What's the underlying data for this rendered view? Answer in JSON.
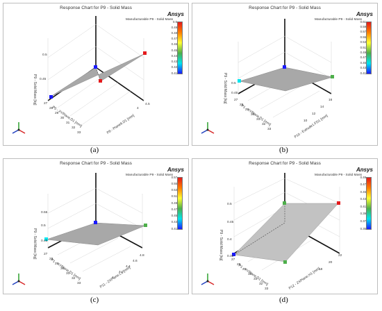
{
  "panels": [
    {
      "id": "a",
      "title": "Response Chart for P9 - Solid Mass",
      "brand": "Ansys",
      "legend_title": "Manufacturable P9 - Solid Mass",
      "colorbar_ticks": [
        "0.5",
        "0.49",
        "0.48",
        "0.47",
        "0.46",
        "0.45",
        "0.44",
        "0.43",
        "0.42",
        "0.41"
      ],
      "z_axis_label": "P9 - Solid Mass  [kg]",
      "z_ticks": [
        "0.5",
        "0.45"
      ],
      "x_axis_label": "P5 - XYPlane.D1  [mm]",
      "x_ticks": [
        "27",
        "28",
        "29",
        "30",
        "31",
        "32",
        "33"
      ],
      "y_axis_label": "P8 - Plane6.D1  [mm]",
      "y_ticks": [
        "4",
        "4.5"
      ],
      "caption": "(a)",
      "colors": {
        "corner_high": "#e41a1c",
        "corner_low": "#1a1aff",
        "surface": "#a8a8a8"
      }
    },
    {
      "id": "b",
      "title": "Response Chart for P9 - Solid Mass",
      "brand": "Ansys",
      "legend_title": "Manufacturable P9 - Solid Mass",
      "colorbar_ticks": [
        "0.61",
        "0.59",
        "0.57",
        "0.55",
        "0.53",
        "0.51",
        "0.49",
        "0.47",
        "0.45",
        "0.43",
        "0.41"
      ],
      "z_axis_label": "P9 - Solid Mass  [kg]",
      "z_ticks": [
        "0.5",
        "0.45"
      ],
      "x_axis_label": "P1 - XYPlane.D1  [mm]",
      "x_ticks": [
        "27",
        "28",
        "29",
        "30",
        "31",
        "32",
        "33"
      ],
      "y_axis_label": "P10 - Extrude1.FD1  [mm]",
      "y_ticks": [
        "10",
        "12",
        "14",
        "16"
      ],
      "caption": "(b)",
      "colors": {
        "corner_high": "#4daf4a",
        "corner_low": "#00e5ee",
        "surface": "#a8a8a8"
      }
    },
    {
      "id": "c",
      "title": "Response Chart for P9 - Solid Mass",
      "brand": "Ansys",
      "legend_title": "Manufacturable P9 - Solid Mass",
      "colorbar_ticks": [
        "0.57",
        "0.55",
        "0.53",
        "0.51",
        "0.49",
        "0.47",
        "0.45",
        "0.43",
        "0.41"
      ],
      "z_axis_label": "P9 - Solid Mass  [kg]",
      "z_ticks": [
        "0.55",
        "0.5",
        "0.45"
      ],
      "x_axis_label": "P1 - XYPlane.D1  [mm]",
      "x_ticks": [
        "27",
        "28",
        "29",
        "30",
        "31",
        "32",
        "33"
      ],
      "y_axis_label": "P11 - ZXPlane.L1  [mm]",
      "y_ticks": [
        "4",
        "4.2",
        "4.4",
        "4.6",
        "4.8"
      ],
      "caption": "(c)",
      "colors": {
        "corner_high": "#4daf4a",
        "corner_low": "#00e5ee",
        "surface": "#a8a8a8"
      }
    },
    {
      "id": "d",
      "title": "Response Chart for P9 - Solid Mass",
      "brand": "Ansys",
      "legend_title": "Manufacturable P9 - Solid Mass",
      "colorbar_ticks": [
        "0.49",
        "0.47",
        "0.45",
        "0.43",
        "0.41",
        "0.39",
        "0.37",
        "0.35"
      ],
      "z_axis_label": "P9 - Solid Mass  [kg]",
      "z_ticks": [
        "0.5",
        "0.45",
        "0.4",
        "0.35"
      ],
      "x_axis_label": "P1 - XYPlane.D1  [mm]",
      "x_ticks": [
        "27",
        "28",
        "29",
        "30",
        "31",
        "32",
        "33"
      ],
      "y_axis_label": "P12 - ZXPlane.H1  [mm]",
      "y_ticks": [
        "18",
        "20",
        "22"
      ],
      "caption": "(d)",
      "colors": {
        "corner_high": "#e41a1c",
        "corner_low": "#1a1aff",
        "surface": "#c2c2c2"
      }
    }
  ]
}
